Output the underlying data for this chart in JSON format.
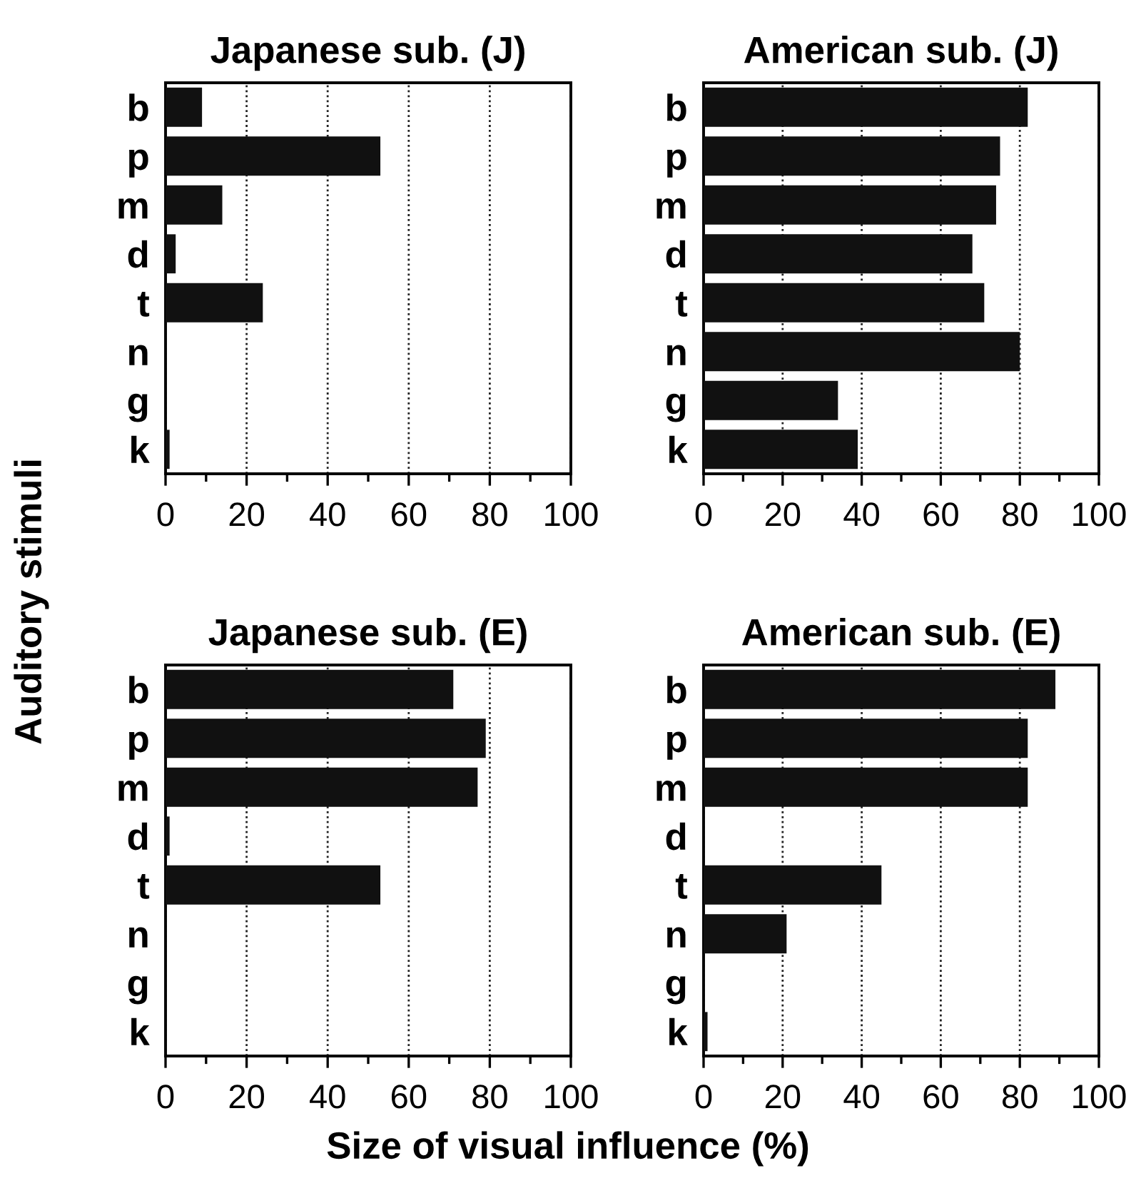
{
  "chart_data": [
    {
      "type": "bar",
      "orientation": "horizontal",
      "title": "Japanese sub. (J)",
      "ylabel": "Auditory stimuli",
      "categories": [
        "b",
        "p",
        "m",
        "d",
        "t",
        "n",
        "g",
        "k"
      ],
      "values": [
        9,
        53,
        14,
        2.5,
        24,
        0,
        0,
        1
      ],
      "color": "#111111",
      "xlim": [
        0,
        100
      ],
      "xticks": [
        0,
        20,
        40,
        60,
        80,
        100
      ],
      "grid": "x"
    },
    {
      "type": "bar",
      "orientation": "horizontal",
      "title": "American sub. (J)",
      "categories": [
        "b",
        "p",
        "m",
        "d",
        "t",
        "n",
        "g",
        "k"
      ],
      "values": [
        82,
        75,
        74,
        68,
        71,
        80,
        34,
        39
      ],
      "color": "#111111",
      "xlim": [
        0,
        100
      ],
      "xticks": [
        0,
        20,
        40,
        60,
        80,
        100
      ],
      "grid": "x"
    },
    {
      "type": "bar",
      "orientation": "horizontal",
      "title": "Japanese sub. (E)",
      "xlabel": "Size of visual influence (%)",
      "categories": [
        "b",
        "p",
        "m",
        "d",
        "t",
        "n",
        "g",
        "k"
      ],
      "values": [
        71,
        79,
        77,
        1,
        53,
        0,
        0,
        0
      ],
      "color": "#111111",
      "xlim": [
        0,
        100
      ],
      "xticks": [
        0,
        20,
        40,
        60,
        80,
        100
      ],
      "grid": "x"
    },
    {
      "type": "bar",
      "orientation": "horizontal",
      "title": "American sub. (E)",
      "categories": [
        "b",
        "p",
        "m",
        "d",
        "t",
        "n",
        "g",
        "k"
      ],
      "values": [
        89,
        82,
        82,
        0,
        45,
        21,
        0,
        1
      ],
      "color": "#111111",
      "xlim": [
        0,
        100
      ],
      "xticks": [
        0,
        20,
        40,
        60,
        80,
        100
      ],
      "grid": "x"
    }
  ]
}
